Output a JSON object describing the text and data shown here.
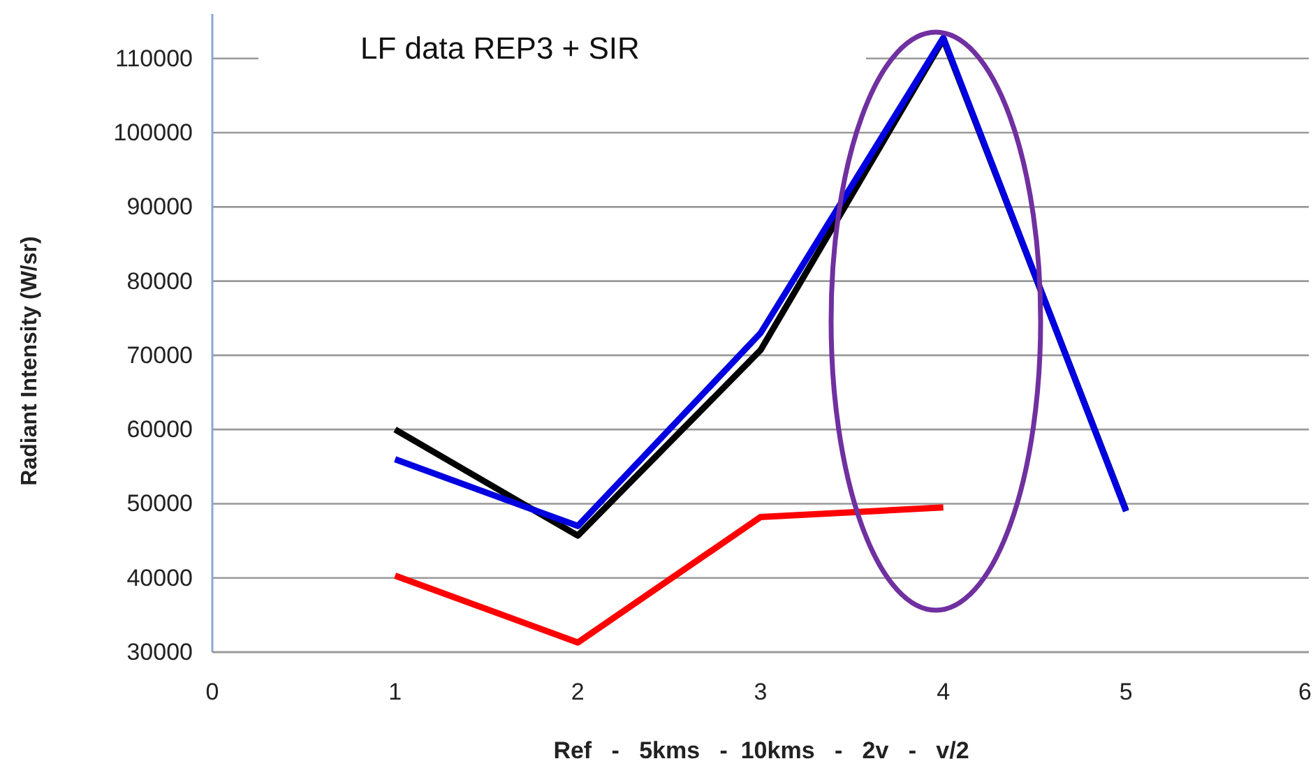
{
  "chart_data": {
    "type": "line",
    "title": "LF data REP3 + SIR",
    "xlabel": "Ref   -   5kms   -  10kms   -   2v   -   v/2",
    "ylabel": "Radiant Intensity (W/sr)",
    "x": [
      1,
      2,
      3,
      4,
      5
    ],
    "series": [
      {
        "color": "#000000",
        "values": [
          60000,
          45700,
          70700,
          112600,
          49100
        ]
      },
      {
        "color": "#0000e0",
        "values": [
          56000,
          47000,
          73000,
          112800,
          49000
        ]
      },
      {
        "color": "#ff0000",
        "values": [
          40300,
          31300,
          48200,
          49500,
          null
        ]
      }
    ],
    "xlim": [
      0,
      6
    ],
    "xticks": [
      0,
      1,
      2,
      3,
      4,
      5,
      6
    ],
    "ylim": [
      30000,
      116000
    ],
    "yticks": [
      30000,
      40000,
      50000,
      60000,
      70000,
      80000,
      90000,
      100000,
      110000
    ],
    "grid": "y",
    "marker": "none",
    "line_style": "solid"
  }
}
